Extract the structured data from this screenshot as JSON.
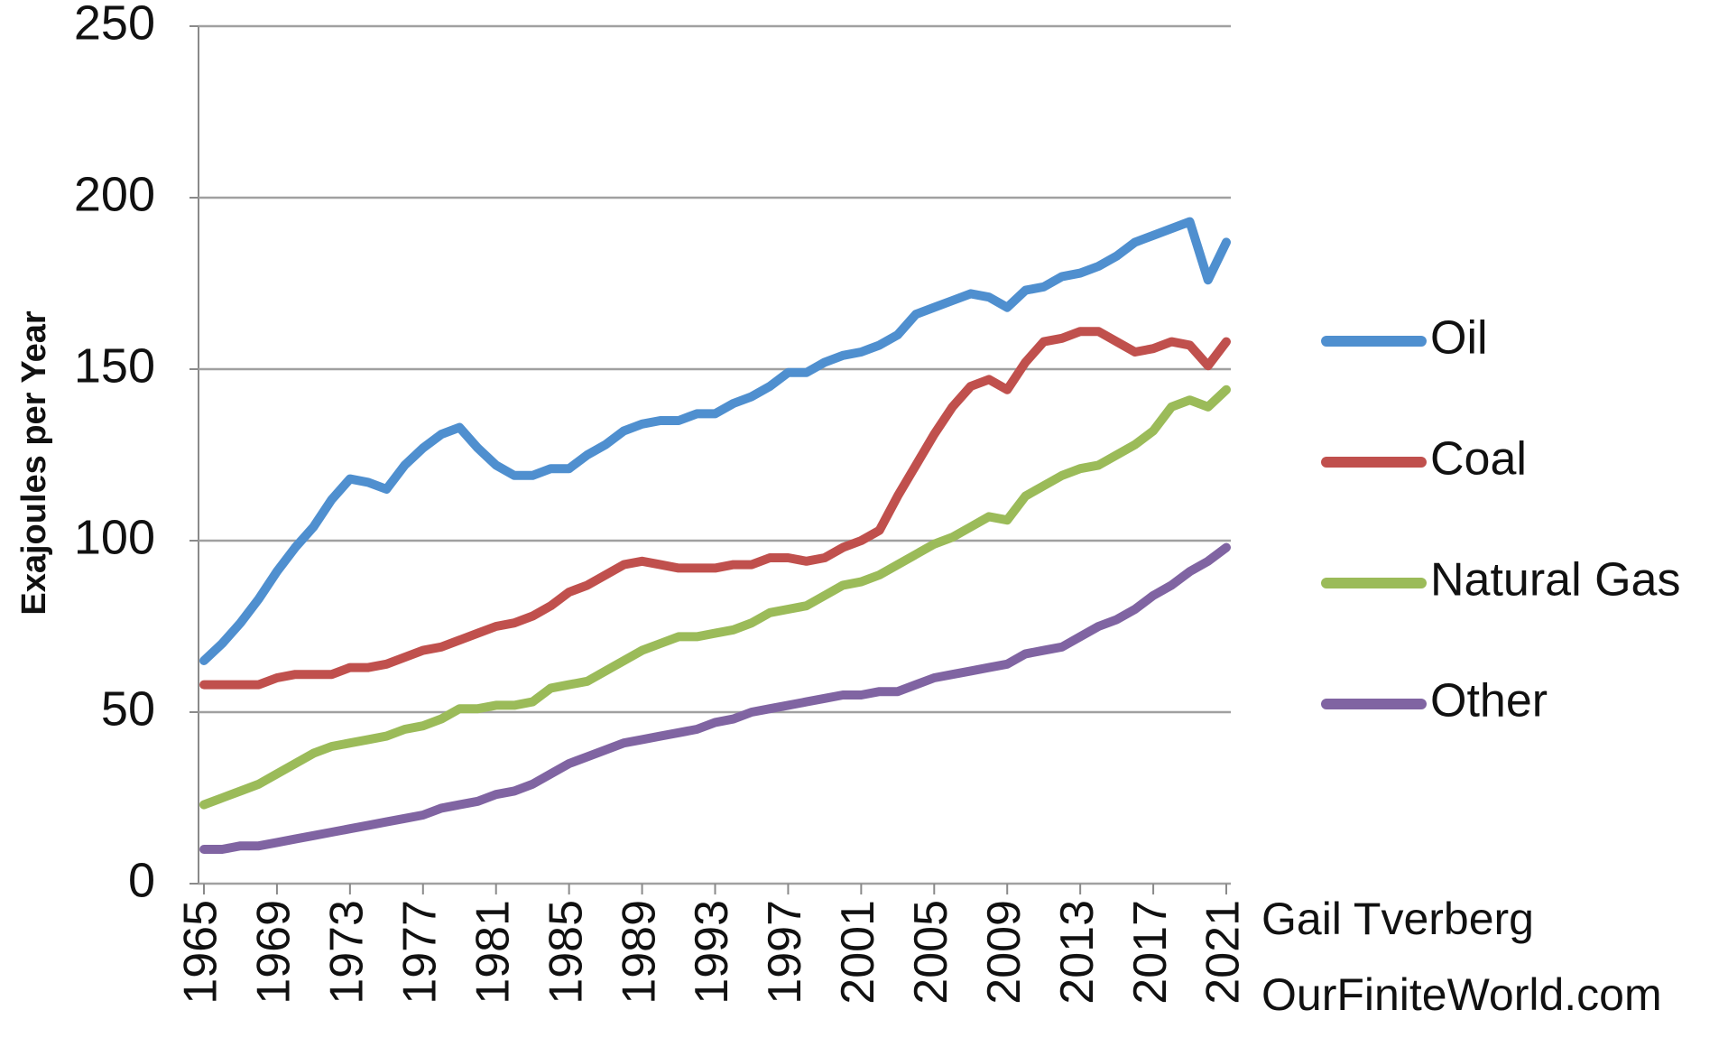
{
  "chart_data": {
    "type": "line",
    "y_label": "Exajoules per Year",
    "annotations": [
      "Gail Tverberg",
      "OurFiniteWorld.com"
    ],
    "x": [
      1965,
      1966,
      1967,
      1968,
      1969,
      1970,
      1971,
      1972,
      1973,
      1974,
      1975,
      1976,
      1977,
      1978,
      1979,
      1980,
      1981,
      1982,
      1983,
      1984,
      1985,
      1986,
      1987,
      1988,
      1989,
      1990,
      1991,
      1992,
      1993,
      1994,
      1995,
      1996,
      1997,
      1998,
      1999,
      2000,
      2001,
      2002,
      2003,
      2004,
      2005,
      2006,
      2007,
      2008,
      2009,
      2010,
      2011,
      2012,
      2013,
      2014,
      2015,
      2016,
      2017,
      2018,
      2019,
      2020,
      2021
    ],
    "xlim": [
      1965,
      2021
    ],
    "xticks": [
      1965,
      1969,
      1973,
      1977,
      1981,
      1985,
      1989,
      1993,
      1997,
      2001,
      2005,
      2009,
      2013,
      2017,
      2021
    ],
    "ylim": [
      0,
      250
    ],
    "yticks": [
      0,
      50,
      100,
      150,
      200,
      250
    ],
    "grid": true,
    "legend": "right",
    "series": [
      {
        "name": "Oil",
        "color": "#4f8fcf",
        "values": [
          65,
          70,
          76,
          83,
          91,
          98,
          104,
          112,
          118,
          117,
          115,
          122,
          127,
          131,
          133,
          127,
          122,
          119,
          119,
          121,
          121,
          125,
          128,
          132,
          134,
          135,
          135,
          137,
          137,
          140,
          142,
          145,
          149,
          149,
          152,
          154,
          155,
          157,
          160,
          166,
          168,
          170,
          172,
          171,
          168,
          173,
          174,
          177,
          178,
          180,
          183,
          187,
          189,
          191,
          193,
          176,
          187
        ]
      },
      {
        "name": "Coal",
        "color": "#c0504d",
        "values": [
          58,
          58,
          58,
          58,
          60,
          61,
          61,
          61,
          63,
          63,
          64,
          66,
          68,
          69,
          71,
          73,
          75,
          76,
          78,
          81,
          85,
          87,
          90,
          93,
          94,
          93,
          92,
          92,
          92,
          93,
          93,
          95,
          95,
          94,
          95,
          98,
          100,
          103,
          113,
          122,
          131,
          139,
          145,
          147,
          144,
          152,
          158,
          159,
          161,
          161,
          158,
          155,
          156,
          158,
          157,
          151,
          158
        ]
      },
      {
        "name": "Natural Gas",
        "color": "#9bbb59",
        "values": [
          23,
          25,
          27,
          29,
          32,
          35,
          38,
          40,
          41,
          42,
          43,
          45,
          46,
          48,
          51,
          51,
          52,
          52,
          53,
          57,
          58,
          59,
          62,
          65,
          68,
          70,
          72,
          72,
          73,
          74,
          76,
          79,
          80,
          81,
          84,
          87,
          88,
          90,
          93,
          96,
          99,
          101,
          104,
          107,
          106,
          113,
          116,
          119,
          121,
          122,
          125,
          128,
          132,
          139,
          141,
          139,
          144
        ]
      },
      {
        "name": "Other",
        "color": "#8064a2",
        "values": [
          10,
          10,
          11,
          11,
          12,
          13,
          14,
          15,
          16,
          17,
          18,
          19,
          20,
          22,
          23,
          24,
          26,
          27,
          29,
          32,
          35,
          37,
          39,
          41,
          42,
          43,
          44,
          45,
          47,
          48,
          50,
          51,
          52,
          53,
          54,
          55,
          55,
          56,
          56,
          58,
          60,
          61,
          62,
          63,
          64,
          67,
          68,
          69,
          72,
          75,
          77,
          80,
          84,
          87,
          91,
          94,
          98
        ]
      }
    ]
  }
}
